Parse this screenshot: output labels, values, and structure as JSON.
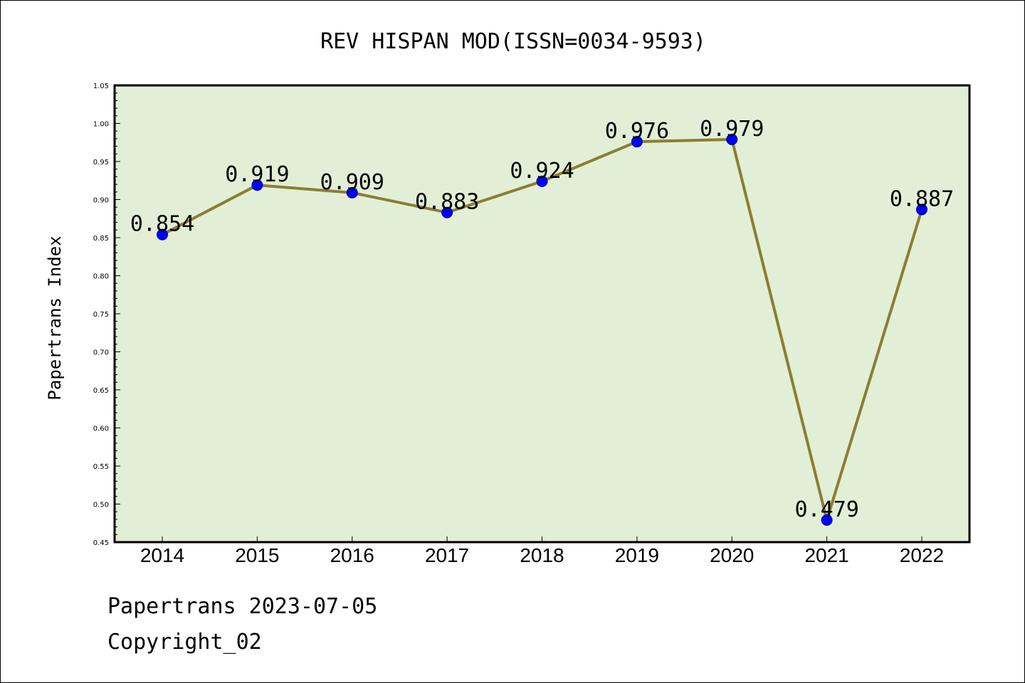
{
  "colors": {
    "plot_background": "#e2efd6",
    "line": "#8b7d32",
    "marker": "#0000ff"
  },
  "footer": {
    "source_date": "Papertrans 2023-07-05",
    "copyright": "Copyright_02"
  },
  "chart_data": {
    "type": "line",
    "title": "REV HISPAN MOD(ISSN=0034-9593)",
    "xlabel": "",
    "ylabel": "Papertrans Index",
    "categories": [
      "2014",
      "2015",
      "2016",
      "2017",
      "2018",
      "2019",
      "2020",
      "2021",
      "2022"
    ],
    "series": [
      {
        "values": [
          0.854,
          0.919,
          0.909,
          0.883,
          0.924,
          0.976,
          0.979,
          0.479,
          0.887
        ],
        "data_labels": [
          "0.854",
          "0.919",
          "0.909",
          "0.883",
          "0.924",
          "0.976",
          "0.979",
          "0.479",
          "0.887"
        ]
      }
    ],
    "ylim": [
      0.45,
      1.05
    ],
    "yticks": [
      "0.45",
      "0.50",
      "0.55",
      "0.60",
      "0.65",
      "0.70",
      "0.75",
      "0.80",
      "0.85",
      "0.90",
      "0.95",
      "1.00",
      "1.05"
    ],
    "grid": false,
    "legend": "none"
  }
}
